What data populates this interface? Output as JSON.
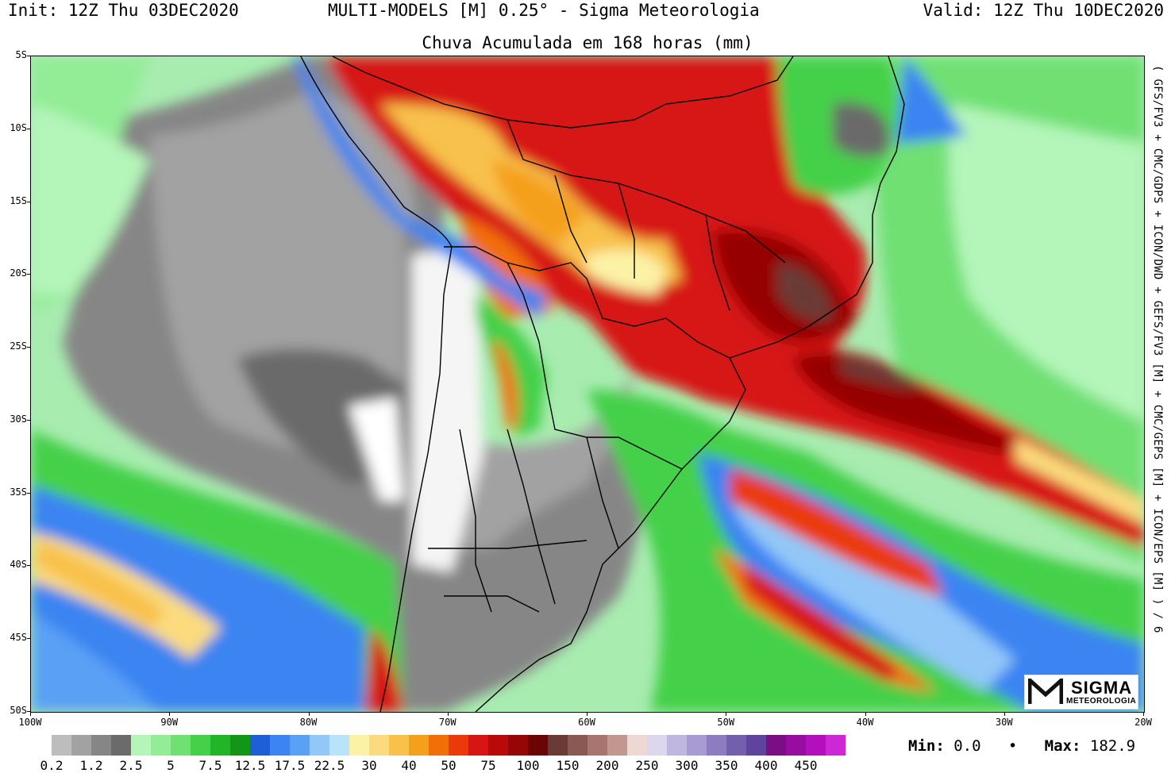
{
  "header": {
    "init": "Init: 12Z Thu 03DEC2020",
    "model": "MULTI-MODELS [M] 0.25° - Sigma Meteorologia",
    "valid": "Valid: 12Z Thu 10DEC2020",
    "subtitle": "Chuva Acumulada em 168 horas (mm)"
  },
  "side_text": "( GFS/FV3 + CMC/GDPS + ICON/DWD + GEFS/FV3 [M] + CMC/GEPS [M] + ICON/EPS [M] ) / 6",
  "lat_labels": [
    "5S",
    "10S",
    "15S",
    "20S",
    "25S",
    "30S",
    "35S",
    "40S",
    "45S",
    "50S"
  ],
  "lon_labels": [
    "100W",
    "90W",
    "80W",
    "70W",
    "60W",
    "50W",
    "40W",
    "30W",
    "20W"
  ],
  "legend": {
    "colors": [
      "#bdbdbd",
      "#a2a2a2",
      "#868686",
      "#6b6b6b",
      "#b4f5b9",
      "#93ec96",
      "#70e073",
      "#45d04a",
      "#22b527",
      "#139518",
      "#1e5ed6",
      "#3b84f2",
      "#5aa0f5",
      "#92c7f8",
      "#b7e4fa",
      "#fcf2a6",
      "#fbdb7e",
      "#f8c14b",
      "#f5a01c",
      "#f26e07",
      "#ea3a09",
      "#d71515",
      "#b90a0a",
      "#960606",
      "#6b0404",
      "#6a3a35",
      "#8b5953",
      "#a8766e",
      "#c2978f",
      "#eed8d3",
      "#dcd6ee",
      "#c0b7e0",
      "#a79bd1",
      "#8d7cc0",
      "#735fae",
      "#5f439c",
      "#7a0f84",
      "#970da2",
      "#b40fbd",
      "#cd28d6"
    ],
    "labels": [
      "0.2",
      "1.2",
      "2.5",
      "5",
      "7.5",
      "12.5",
      "17.5",
      "22.5",
      "30",
      "40",
      "50",
      "75",
      "100",
      "150",
      "200",
      "250",
      "300",
      "350",
      "400",
      "450"
    ]
  },
  "stats": {
    "min_label": "Min:",
    "min_value": "0.0",
    "separator": "•",
    "max_label": "Max:",
    "max_value": "182.9"
  },
  "logo": {
    "word1": "SIGMA",
    "word2": "METEOROLOGIA"
  }
}
